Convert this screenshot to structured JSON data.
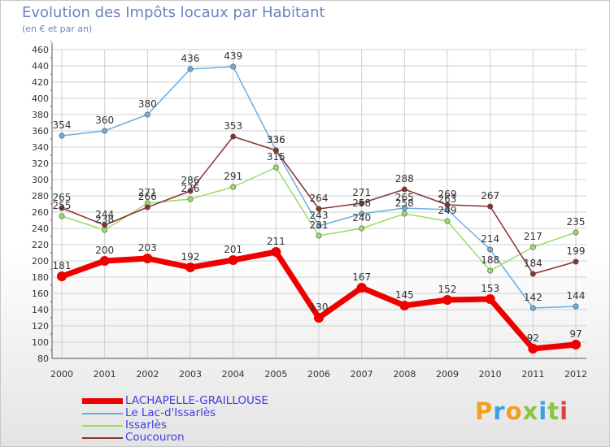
{
  "header": {
    "title": "Evolution des Impôts locaux par Habitant",
    "subtitle": "(en € et par an)"
  },
  "brand": {
    "text": "Proxiti",
    "colors": [
      "#f0a020",
      "#3aa0e0",
      "#f0a020",
      "#8cc63e",
      "#3aa0e0",
      "#8cc63e",
      "#e04040"
    ]
  },
  "chart_data": {
    "type": "line",
    "title": "Evolution des Impôts locaux par Habitant",
    "subtitle": "(en € et par an)",
    "xlabel": "",
    "ylabel": "",
    "x": [
      "2000",
      "2001",
      "2002",
      "2003",
      "2004",
      "2005",
      "2006",
      "2007",
      "2008",
      "2009",
      "2010",
      "2011",
      "2012"
    ],
    "ylim": [
      80,
      460
    ],
    "yticks": [
      80,
      100,
      120,
      140,
      160,
      180,
      200,
      220,
      240,
      260,
      280,
      300,
      320,
      340,
      360,
      380,
      400,
      420,
      440,
      460
    ],
    "grid": true,
    "legend_position": "bottom-left",
    "series": [
      {
        "name": "LACHAPELLE-GRAILLOUSE",
        "color": "#ee0000",
        "values": [
          181,
          200,
          203,
          192,
          201,
          211,
          130,
          167,
          145,
          152,
          153,
          92,
          97
        ]
      },
      {
        "name": "Le Lac-d'Issarlès",
        "color": "#6aaee0",
        "values": [
          354,
          360,
          380,
          436,
          439,
          336,
          243,
          258,
          265,
          263,
          214,
          142,
          144
        ]
      },
      {
        "name": "Issarlès",
        "color": "#99dd66",
        "values": [
          255,
          238,
          271,
          276,
          291,
          315,
          231,
          240,
          258,
          249,
          188,
          217,
          235
        ]
      },
      {
        "name": "Coucouron",
        "color": "#883333",
        "values": [
          265,
          244,
          266,
          286,
          353,
          336,
          264,
          271,
          288,
          269,
          267,
          184,
          199
        ]
      }
    ]
  }
}
